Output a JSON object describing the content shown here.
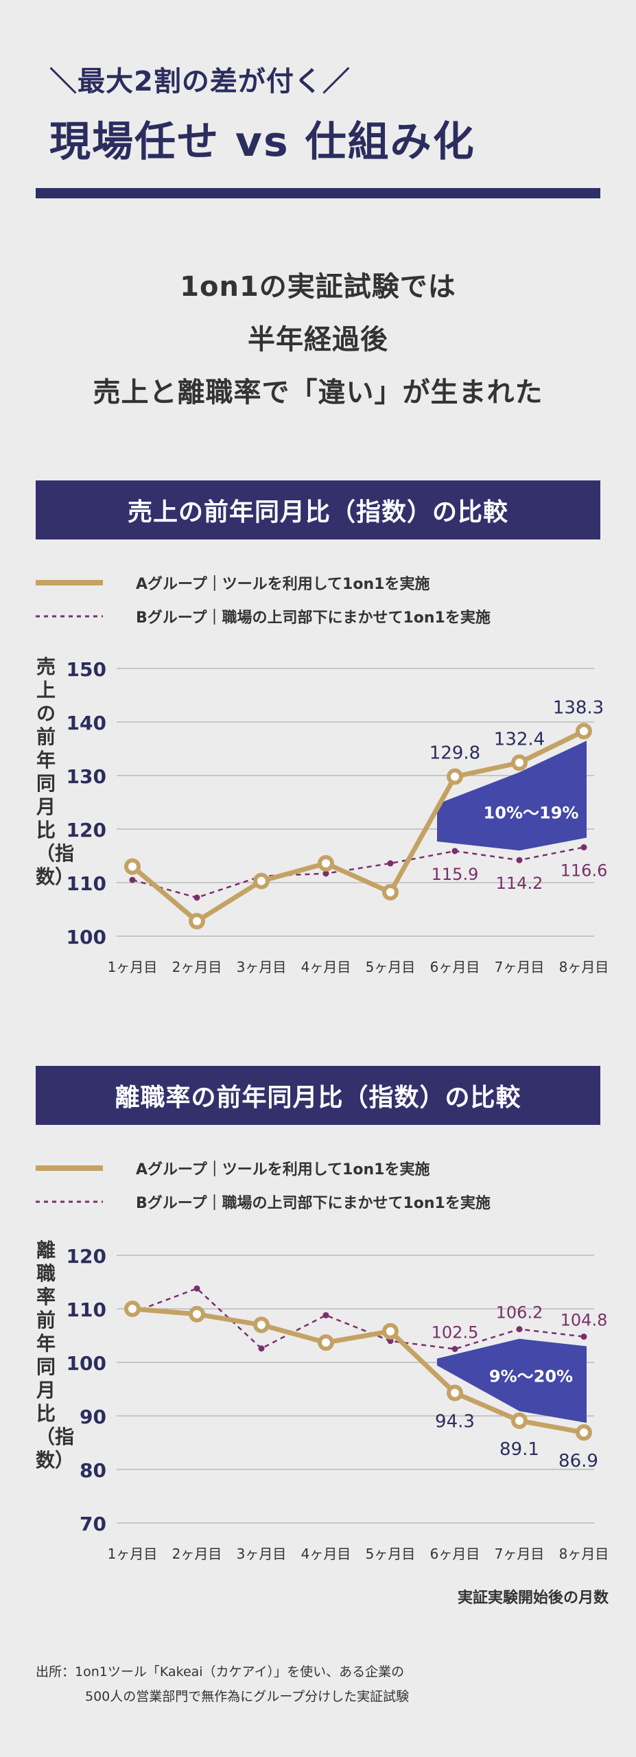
{
  "header": {
    "kicker": "＼最大2割の差が付く／",
    "title": "現場任せ vs 仕組み化"
  },
  "lead": {
    "line1": "1on1の実証試験では",
    "line2": "半年経過後",
    "line3": "売上と離職率で「違い」が生まれた"
  },
  "colors": {
    "navy": "#2e2f66",
    "gold": "#c4a264",
    "purple": "#7a2f6b",
    "band": "#4448a8"
  },
  "legend": {
    "a": "Aグループ｜ツールを利用して1on1を実施",
    "b": "Bグループ｜職場の上司部下にまかせて1on1を実施"
  },
  "x_note": "実証実験開始後の月数",
  "source": {
    "line1": "出所：1on1ツール「Kakeai（カケアイ）」を使い、ある企業の",
    "line2": "500人の営業部門で無作為にグループ分けした実証試験"
  },
  "chart_data": [
    {
      "type": "line",
      "title": "売上の前年同月比（指数）の比較",
      "ylabel": "売上の前年同月比（指数）",
      "categories": [
        "1ヶ月目",
        "2ヶ月目",
        "3ヶ月目",
        "4ヶ月目",
        "5ヶ月目",
        "6ヶ月目",
        "7ヶ月目",
        "8ヶ月目"
      ],
      "ylim": [
        100,
        150
      ],
      "yticks": [
        100,
        110,
        120,
        130,
        140,
        150
      ],
      "grid": true,
      "series": [
        {
          "name": "Aグループ｜ツールを利用して1on1を実施",
          "values": [
            113,
            102.8,
            110.3,
            113.6,
            108.2,
            129.8,
            132.4,
            138.3
          ]
        },
        {
          "name": "Bグループ｜職場の上司部下にまかせて1on1を実施",
          "values": [
            110.5,
            107.2,
            111.2,
            111.7,
            113.6,
            115.9,
            114.2,
            116.6
          ]
        }
      ],
      "data_labels": {
        "a": [
          null,
          null,
          null,
          null,
          null,
          "129.8",
          "132.4",
          "138.3"
        ],
        "b": [
          null,
          null,
          null,
          null,
          null,
          "115.9",
          "114.2",
          "116.6"
        ]
      },
      "gap_label": "10%〜19%",
      "gap_from_index": 5
    },
    {
      "type": "line",
      "title": "離職率の前年同月比（指数）の比較",
      "ylabel": "離職率前年同月比（指数）",
      "categories": [
        "1ヶ月目",
        "2ヶ月目",
        "3ヶ月目",
        "4ヶ月目",
        "5ヶ月目",
        "6ヶ月目",
        "7ヶ月目",
        "8ヶ月目"
      ],
      "ylim": [
        70,
        120
      ],
      "yticks": [
        70,
        80,
        90,
        100,
        110,
        120
      ],
      "grid": true,
      "series": [
        {
          "name": "Aグループ｜ツールを利用して1on1を実施",
          "values": [
            110,
            109,
            107,
            103.7,
            105.8,
            94.3,
            89.1,
            86.9
          ]
        },
        {
          "name": "Bグループ｜職場の上司部下にまかせて1on1を実施",
          "values": [
            109.3,
            113.8,
            102.6,
            108.8,
            104,
            102.5,
            106.2,
            104.8
          ]
        }
      ],
      "data_labels": {
        "a": [
          null,
          null,
          null,
          null,
          null,
          "94.3",
          "89.1",
          "86.9"
        ],
        "b": [
          null,
          null,
          null,
          null,
          null,
          "102.5",
          "106.2",
          "104.8"
        ]
      },
      "gap_label": "9%〜20%",
      "gap_from_index": 5
    }
  ]
}
